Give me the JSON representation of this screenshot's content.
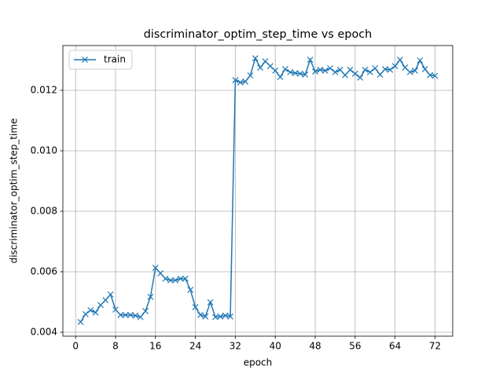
{
  "chart_data": {
    "type": "line",
    "title": "discriminator_optim_step_time vs epoch",
    "x_label": "epoch",
    "y_label": "discriminator_optim_step_time",
    "x": [
      1,
      2,
      3,
      4,
      5,
      6,
      7,
      8,
      9,
      10,
      11,
      12,
      13,
      14,
      15,
      16,
      17,
      18,
      19,
      20,
      21,
      22,
      23,
      24,
      25,
      26,
      27,
      28,
      29,
      30,
      31,
      32,
      33,
      34,
      35,
      36,
      37,
      38,
      39,
      40,
      41,
      42,
      43,
      44,
      45,
      46,
      47,
      48,
      49,
      50,
      51,
      52,
      53,
      54,
      55,
      56,
      57,
      58,
      59,
      60,
      61,
      62,
      63,
      64,
      65,
      66,
      67,
      68,
      69,
      70,
      71,
      72
    ],
    "series": [
      {
        "name": "train",
        "color": "#1f77b4",
        "marker": "x",
        "values": [
          0.00434,
          0.0046,
          0.00473,
          0.00465,
          0.0049,
          0.00506,
          0.00525,
          0.00475,
          0.00457,
          0.00457,
          0.00457,
          0.00455,
          0.0045,
          0.0047,
          0.00517,
          0.00613,
          0.00595,
          0.00577,
          0.00572,
          0.00572,
          0.00577,
          0.00577,
          0.0054,
          0.00483,
          0.00457,
          0.00452,
          0.00499,
          0.0045,
          0.00452,
          0.00455,
          0.00452,
          0.01234,
          0.01226,
          0.01229,
          0.01249,
          0.01306,
          0.01275,
          0.01296,
          0.0128,
          0.01265,
          0.01244,
          0.0127,
          0.0126,
          0.01257,
          0.01255,
          0.01252,
          0.01301,
          0.01262,
          0.01268,
          0.01265,
          0.01273,
          0.0126,
          0.01268,
          0.0125,
          0.01268,
          0.01255,
          0.01242,
          0.01268,
          0.0126,
          0.01273,
          0.01252,
          0.0127,
          0.01268,
          0.0128,
          0.01301,
          0.01275,
          0.0126,
          0.01265,
          0.01299,
          0.0127,
          0.0125,
          0.01248
        ]
      }
    ],
    "xlim": [
      -2.55,
      75.55
    ],
    "ylim": [
      0.00387,
      0.01348
    ],
    "xticks": [
      0,
      8,
      16,
      24,
      32,
      40,
      48,
      56,
      64,
      72
    ],
    "yticks": [
      0.004,
      0.006,
      0.008,
      {
        "value": 0.01,
        "label": "0.010"
      },
      0.012
    ],
    "grid": true,
    "legend": "upper left"
  }
}
